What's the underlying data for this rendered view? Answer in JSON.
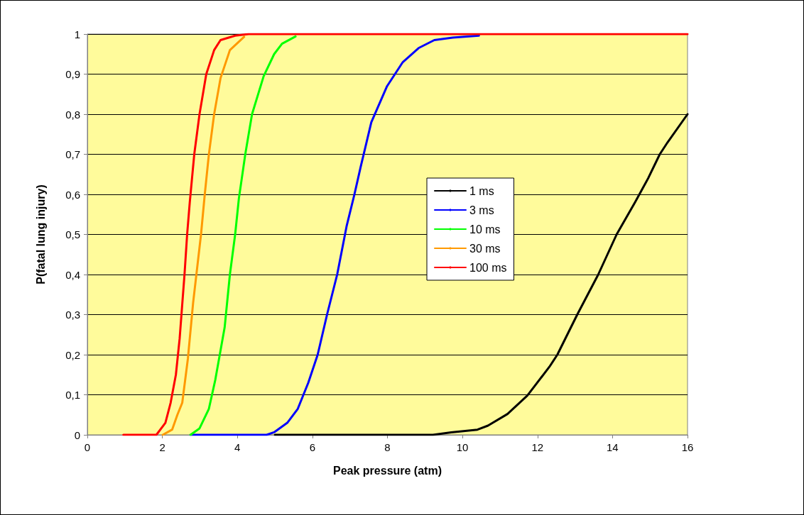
{
  "chart_data": {
    "type": "line",
    "xlabel": "Peak pressure (atm)",
    "ylabel": "P(fatal lung injury)",
    "xlim": [
      0,
      16
    ],
    "xticks": [
      0,
      2,
      4,
      6,
      8,
      10,
      12,
      14,
      16
    ],
    "ylim": [
      0,
      1
    ],
    "yticks": [
      0,
      {
        "value": 0.1,
        "label": "0,1"
      },
      {
        "value": 0.2,
        "label": "0,2"
      },
      {
        "value": 0.3,
        "label": "0,3"
      },
      {
        "value": 0.4,
        "label": "0,4"
      },
      {
        "value": 0.5,
        "label": "0,5"
      },
      {
        "value": 0.6,
        "label": "0,6"
      },
      {
        "value": 0.7,
        "label": "0,7"
      },
      {
        "value": 0.8,
        "label": "0,8"
      },
      {
        "value": 0.9,
        "label": "0,9"
      },
      1
    ],
    "grid": "y",
    "legend": "right",
    "marker": "none",
    "line_style": "solid",
    "series": [
      {
        "name": "1 ms",
        "color": "#000000",
        "x": [
          5.0,
          9.21,
          9.7,
          10.4,
          10.68,
          11.2,
          11.73,
          12.32,
          12.53,
          13.06,
          13.62,
          14.11,
          14.6,
          14.95,
          15.26,
          15.47,
          16.0
        ],
        "values": [
          0,
          0,
          0.006,
          0.013,
          0.023,
          0.052,
          0.098,
          0.17,
          0.2,
          0.3,
          0.4,
          0.5,
          0.58,
          0.64,
          0.7,
          0.73,
          0.8
        ]
      },
      {
        "name": "3 ms",
        "color": "#0000ff",
        "x": [
          2.75,
          4.78,
          4.99,
          5.33,
          5.61,
          5.89,
          6.14,
          6.39,
          6.66,
          6.91,
          7.12,
          7.29,
          7.57,
          7.99,
          8.41,
          8.83,
          9.25,
          9.74,
          10.44
        ],
        "values": [
          0,
          0,
          0.007,
          0.03,
          0.065,
          0.13,
          0.2,
          0.3,
          0.4,
          0.52,
          0.6,
          0.67,
          0.78,
          0.87,
          0.93,
          0.965,
          0.985,
          0.991,
          0.996
        ]
      },
      {
        "name": "10 ms",
        "color": "#00ff00",
        "x": [
          2.75,
          2.99,
          3.24,
          3.41,
          3.66,
          3.8,
          3.94,
          4.04,
          4.21,
          4.39,
          4.7,
          4.98,
          5.19,
          5.55
        ],
        "values": [
          0,
          0.016,
          0.065,
          0.137,
          0.268,
          0.4,
          0.5,
          0.59,
          0.7,
          0.8,
          0.895,
          0.95,
          0.976,
          0.994
        ]
      },
      {
        "name": "30 ms",
        "color": "#ff9900",
        "x": [
          2.01,
          2.26,
          2.4,
          2.53,
          2.68,
          2.82,
          3.03,
          3.13,
          3.24,
          3.38,
          3.55,
          3.8,
          4.18
        ],
        "values": [
          0,
          0.013,
          0.05,
          0.08,
          0.19,
          0.33,
          0.5,
          0.6,
          0.7,
          0.8,
          0.89,
          0.96,
          0.993
        ]
      },
      {
        "name": "100 ms",
        "color": "#ff0000",
        "x": [
          0.96,
          1.84,
          2.08,
          2.22,
          2.36,
          2.46,
          2.59,
          2.66,
          2.73,
          2.85,
          2.99,
          3.17,
          3.38,
          3.55,
          3.94,
          4.3,
          16.0
        ],
        "values": [
          0,
          0,
          0.03,
          0.08,
          0.15,
          0.24,
          0.4,
          0.5,
          0.58,
          0.7,
          0.8,
          0.9,
          0.96,
          0.985,
          0.996,
          1,
          1
        ]
      }
    ]
  }
}
